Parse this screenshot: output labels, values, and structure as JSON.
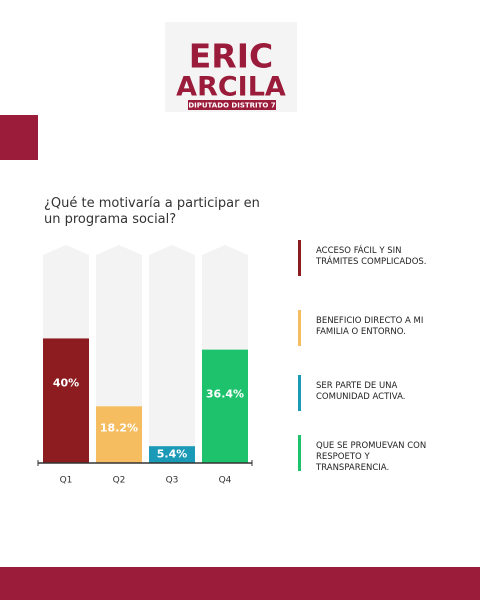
{
  "logo": {
    "line1": "ERIC",
    "line2": "ARCILA",
    "tagline": "DIPUTADO DISTRITO 7"
  },
  "chart_data": {
    "type": "bar",
    "title": "¿Qué te motivaría a participar en un programa social?",
    "categories": [
      "Q1",
      "Q2",
      "Q3",
      "Q4"
    ],
    "values": [
      40,
      18.2,
      5.4,
      36.4
    ],
    "value_labels": [
      "40%",
      "18.2%",
      "5.4%",
      "36.4%"
    ],
    "colors": [
      "#8c1c1f",
      "#f6bd60",
      "#1b9ab8",
      "#1ec26c"
    ],
    "legend": [
      "ACCESO FÁCIL Y SIN TRÁMITES COMPLICADOS.",
      "BENEFICIO DIRECTO A MI FAMILIA O ENTORNO.",
      "SER PARTE DE UNA COMUNIDAD ACTIVA.",
      "QUE SE PROMUEVAN CON RESPOETO Y TRANSPARENCIA."
    ],
    "ylim": [
      0,
      70
    ]
  }
}
